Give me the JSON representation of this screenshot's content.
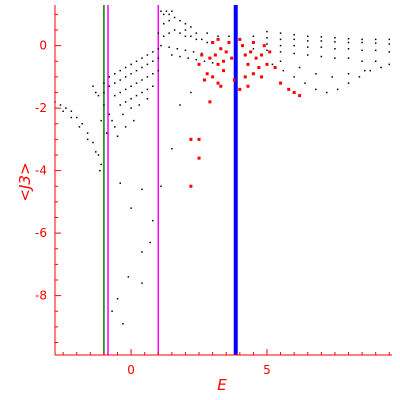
{
  "chart_data": {
    "type": "scatter",
    "title": "",
    "xlabel": "E",
    "ylabel": "<J3>",
    "xlim": [
      -2.8,
      9.6
    ],
    "ylim": [
      -9.9,
      1.3
    ],
    "grid": false,
    "axis_color": "#ff0000",
    "x_ticks": [
      {
        "value": 0,
        "label": "0"
      },
      {
        "value": 5,
        "label": "5"
      }
    ],
    "y_ticks": [
      {
        "value": 0,
        "label": "0"
      },
      {
        "value": -2,
        "label": "-2"
      },
      {
        "value": -4,
        "label": "-4"
      },
      {
        "value": -6,
        "label": "-6"
      },
      {
        "value": -8,
        "label": "-8"
      }
    ],
    "vertical_lines": [
      {
        "x": -1.0,
        "color": "#008000",
        "width": 1.5
      },
      {
        "x": -0.85,
        "color": "#ff00ff",
        "width": 1.5
      },
      {
        "x": 1.0,
        "color": "#ff00ff",
        "width": 1.5
      },
      {
        "x": 3.85,
        "color": "#0000ff",
        "width": 4
      }
    ],
    "series": [
      {
        "color": "#000000",
        "marker_size": 1.5,
        "points": [
          [
            -2.8,
            -1.8
          ],
          [
            -2.6,
            -1.9
          ],
          [
            -2.4,
            -2.0
          ],
          [
            -2.2,
            -2.1
          ],
          [
            -2.0,
            -2.3
          ],
          [
            -1.8,
            -2.5
          ],
          [
            -1.6,
            -2.8
          ],
          [
            -1.4,
            -3.1
          ],
          [
            -1.2,
            -3.5
          ],
          [
            -1.1,
            -3.8
          ],
          [
            -2.5,
            -2.1
          ],
          [
            -2.2,
            -2.3
          ],
          [
            -1.9,
            -2.6
          ],
          [
            -1.6,
            -3.0
          ],
          [
            -1.3,
            -3.4
          ],
          [
            -1.15,
            -4.0
          ],
          [
            -1.4,
            -1.3
          ],
          [
            -1.2,
            -1.6
          ],
          [
            -1.0,
            -1.9
          ],
          [
            -0.8,
            -2.2
          ],
          [
            -0.6,
            -2.6
          ],
          [
            -0.5,
            -2.9
          ],
          [
            -1.3,
            -1.5
          ],
          [
            -1.1,
            -2.4
          ],
          [
            -0.9,
            -2.8
          ],
          [
            -0.7,
            -2.4
          ],
          [
            -1.0,
            -1.2
          ],
          [
            -0.8,
            -1.0
          ],
          [
            -0.6,
            -0.9
          ],
          [
            -0.4,
            -0.8
          ],
          [
            -0.2,
            -0.7
          ],
          [
            0.0,
            -0.6
          ],
          [
            0.2,
            -0.5
          ],
          [
            0.4,
            -0.4
          ],
          [
            0.6,
            -0.3
          ],
          [
            0.8,
            -0.2
          ],
          [
            1.0,
            -0.1
          ],
          [
            -1.0,
            -1.5
          ],
          [
            -0.8,
            -1.3
          ],
          [
            -0.6,
            -1.2
          ],
          [
            -0.4,
            -1.1
          ],
          [
            -0.2,
            -1.0
          ],
          [
            0.0,
            -0.9
          ],
          [
            0.2,
            -0.8
          ],
          [
            0.4,
            -0.7
          ],
          [
            0.6,
            -0.6
          ],
          [
            0.8,
            -0.5
          ],
          [
            1.0,
            -0.4
          ],
          [
            -0.6,
            -1.6
          ],
          [
            -0.4,
            -1.5
          ],
          [
            -0.2,
            -1.4
          ],
          [
            0.0,
            -1.3
          ],
          [
            0.2,
            -1.2
          ],
          [
            0.4,
            -1.1
          ],
          [
            0.6,
            -1.0
          ],
          [
            0.8,
            -0.9
          ],
          [
            1.0,
            -0.8
          ],
          [
            -0.4,
            -1.9
          ],
          [
            -0.2,
            -1.8
          ],
          [
            0.0,
            -1.7
          ],
          [
            0.2,
            -1.6
          ],
          [
            0.4,
            -1.5
          ],
          [
            0.6,
            -1.4
          ],
          [
            0.8,
            -1.3
          ],
          [
            -0.3,
            -2.2
          ],
          [
            0.0,
            -2.0
          ],
          [
            0.3,
            -1.9
          ],
          [
            0.6,
            -1.7
          ],
          [
            -0.2,
            -2.6
          ],
          [
            0.1,
            -2.4
          ],
          [
            1.1,
            1.1
          ],
          [
            1.2,
            1.0
          ],
          [
            1.3,
            1.1
          ],
          [
            1.4,
            1.0
          ],
          [
            1.5,
            1.1
          ],
          [
            1.2,
            0.7
          ],
          [
            1.4,
            0.8
          ],
          [
            1.6,
            0.9
          ],
          [
            1.8,
            0.8
          ],
          [
            2.0,
            0.7
          ],
          [
            2.2,
            0.6
          ],
          [
            1.0,
            0.4
          ],
          [
            1.2,
            0.3
          ],
          [
            1.4,
            0.4
          ],
          [
            1.6,
            0.5
          ],
          [
            1.8,
            0.4
          ],
          [
            2.0,
            0.3
          ],
          [
            2.2,
            0.3
          ],
          [
            2.4,
            0.2
          ],
          [
            2.6,
            0.2
          ],
          [
            2.8,
            0.1
          ],
          [
            1.1,
            0.0
          ],
          [
            1.4,
            -0.05
          ],
          [
            1.7,
            -0.1
          ],
          [
            2.0,
            -0.15
          ],
          [
            2.3,
            -0.2
          ],
          [
            2.6,
            -0.25
          ],
          [
            1.5,
            -0.3
          ],
          [
            1.8,
            -0.35
          ],
          [
            2.1,
            -0.4
          ],
          [
            2.4,
            -0.45
          ],
          [
            2.7,
            -0.5
          ],
          [
            3.0,
            -0.55
          ],
          [
            2.0,
            0.5
          ],
          [
            2.4,
            0.4
          ],
          [
            2.8,
            0.4
          ],
          [
            3.2,
            0.3
          ],
          [
            3.6,
            0.3
          ],
          [
            4.5,
            0.3
          ],
          [
            5.0,
            0.25
          ],
          [
            5.5,
            0.2
          ],
          [
            6.0,
            0.2
          ],
          [
            6.5,
            0.15
          ],
          [
            7.0,
            0.15
          ],
          [
            7.5,
            0.12
          ],
          [
            8.0,
            0.1
          ],
          [
            8.5,
            0.1
          ],
          [
            9.0,
            0.08
          ],
          [
            9.5,
            0.05
          ],
          [
            4.5,
            0.1
          ],
          [
            5.0,
            0.05
          ],
          [
            5.5,
            0.0
          ],
          [
            6.0,
            0.0
          ],
          [
            6.5,
            -0.05
          ],
          [
            7.0,
            -0.05
          ],
          [
            7.5,
            -0.1
          ],
          [
            8.0,
            -0.1
          ],
          [
            8.5,
            -0.15
          ],
          [
            9.0,
            -0.15
          ],
          [
            9.5,
            -0.2
          ],
          [
            4.5,
            -0.1
          ],
          [
            5.0,
            -0.15
          ],
          [
            5.5,
            -0.2
          ],
          [
            6.0,
            -0.25
          ],
          [
            6.5,
            -0.3
          ],
          [
            7.0,
            -0.35
          ],
          [
            7.5,
            -0.4
          ],
          [
            8.0,
            -0.4
          ],
          [
            8.5,
            -0.5
          ],
          [
            9.0,
            -0.5
          ],
          [
            9.5,
            -0.6
          ],
          [
            5.0,
            0.45
          ],
          [
            5.5,
            0.4
          ],
          [
            6.0,
            0.35
          ],
          [
            6.5,
            0.3
          ],
          [
            7.0,
            0.28
          ],
          [
            7.5,
            0.25
          ],
          [
            8.0,
            0.22
          ],
          [
            8.5,
            0.2
          ],
          [
            9.0,
            0.2
          ],
          [
            9.5,
            0.2
          ],
          [
            5.2,
            -0.6
          ],
          [
            5.6,
            -0.8
          ],
          [
            6.0,
            -1.0
          ],
          [
            6.4,
            -1.2
          ],
          [
            6.8,
            -1.4
          ],
          [
            7.2,
            -1.5
          ],
          [
            7.6,
            -1.4
          ],
          [
            8.0,
            -1.2
          ],
          [
            8.4,
            -1.0
          ],
          [
            8.8,
            -0.8
          ],
          [
            5.5,
            -0.5
          ],
          [
            6.2,
            -0.7
          ],
          [
            6.8,
            -0.9
          ],
          [
            7.4,
            -1.0
          ],
          [
            8.0,
            -0.9
          ],
          [
            8.6,
            -0.8
          ],
          [
            9.2,
            -0.7
          ],
          [
            2.2,
            -1.5
          ],
          [
            1.8,
            -1.9
          ],
          [
            1.5,
            -3.3
          ],
          [
            1.1,
            -4.5
          ],
          [
            0.4,
            -4.6
          ],
          [
            -0.4,
            -4.4
          ],
          [
            0.0,
            -5.2
          ],
          [
            0.8,
            -5.6
          ],
          [
            0.7,
            -6.3
          ],
          [
            0.4,
            -6.6
          ],
          [
            -0.1,
            -7.4
          ],
          [
            0.4,
            -7.6
          ],
          [
            -0.5,
            -8.1
          ],
          [
            -0.7,
            -8.5
          ],
          [
            -0.3,
            -8.9
          ]
        ]
      },
      {
        "color": "#ff0000",
        "marker_size": 3,
        "points": [
          [
            3.0,
            0.1
          ],
          [
            3.2,
            0.2
          ],
          [
            3.3,
            -0.1
          ],
          [
            3.1,
            -0.3
          ],
          [
            3.4,
            -0.5
          ],
          [
            3.2,
            -0.6
          ],
          [
            3.5,
            -0.2
          ],
          [
            3.6,
            0.1
          ],
          [
            3.7,
            -0.4
          ],
          [
            3.4,
            -0.8
          ],
          [
            4.0,
            0.2
          ],
          [
            4.1,
            0.0
          ],
          [
            4.2,
            -0.3
          ],
          [
            4.3,
            -0.6
          ],
          [
            4.4,
            -0.2
          ],
          [
            4.5,
            0.1
          ],
          [
            4.6,
            -0.4
          ],
          [
            4.7,
            -0.7
          ],
          [
            4.8,
            -0.3
          ],
          [
            4.9,
            0.0
          ],
          [
            3.0,
            -1.0
          ],
          [
            3.2,
            -1.2
          ],
          [
            3.8,
            -1.1
          ],
          [
            4.2,
            -1.0
          ],
          [
            4.5,
            -0.9
          ],
          [
            4.8,
            -1.0
          ],
          [
            5.0,
            -0.6
          ],
          [
            5.1,
            -0.2
          ],
          [
            5.3,
            -0.7
          ],
          [
            5.5,
            -1.2
          ],
          [
            2.8,
            -0.9
          ],
          [
            2.7,
            -1.1
          ],
          [
            3.3,
            -1.3
          ],
          [
            2.9,
            -1.8
          ],
          [
            2.5,
            -3.0
          ],
          [
            2.5,
            -3.6
          ],
          [
            2.2,
            -3.0
          ],
          [
            2.2,
            -4.5
          ],
          [
            2.5,
            -0.6
          ],
          [
            2.6,
            -0.3
          ],
          [
            2.9,
            -0.4
          ],
          [
            4.0,
            -1.4
          ],
          [
            4.3,
            -1.3
          ],
          [
            5.8,
            -1.4
          ],
          [
            6.0,
            -1.5
          ],
          [
            6.2,
            -1.6
          ]
        ]
      }
    ]
  }
}
